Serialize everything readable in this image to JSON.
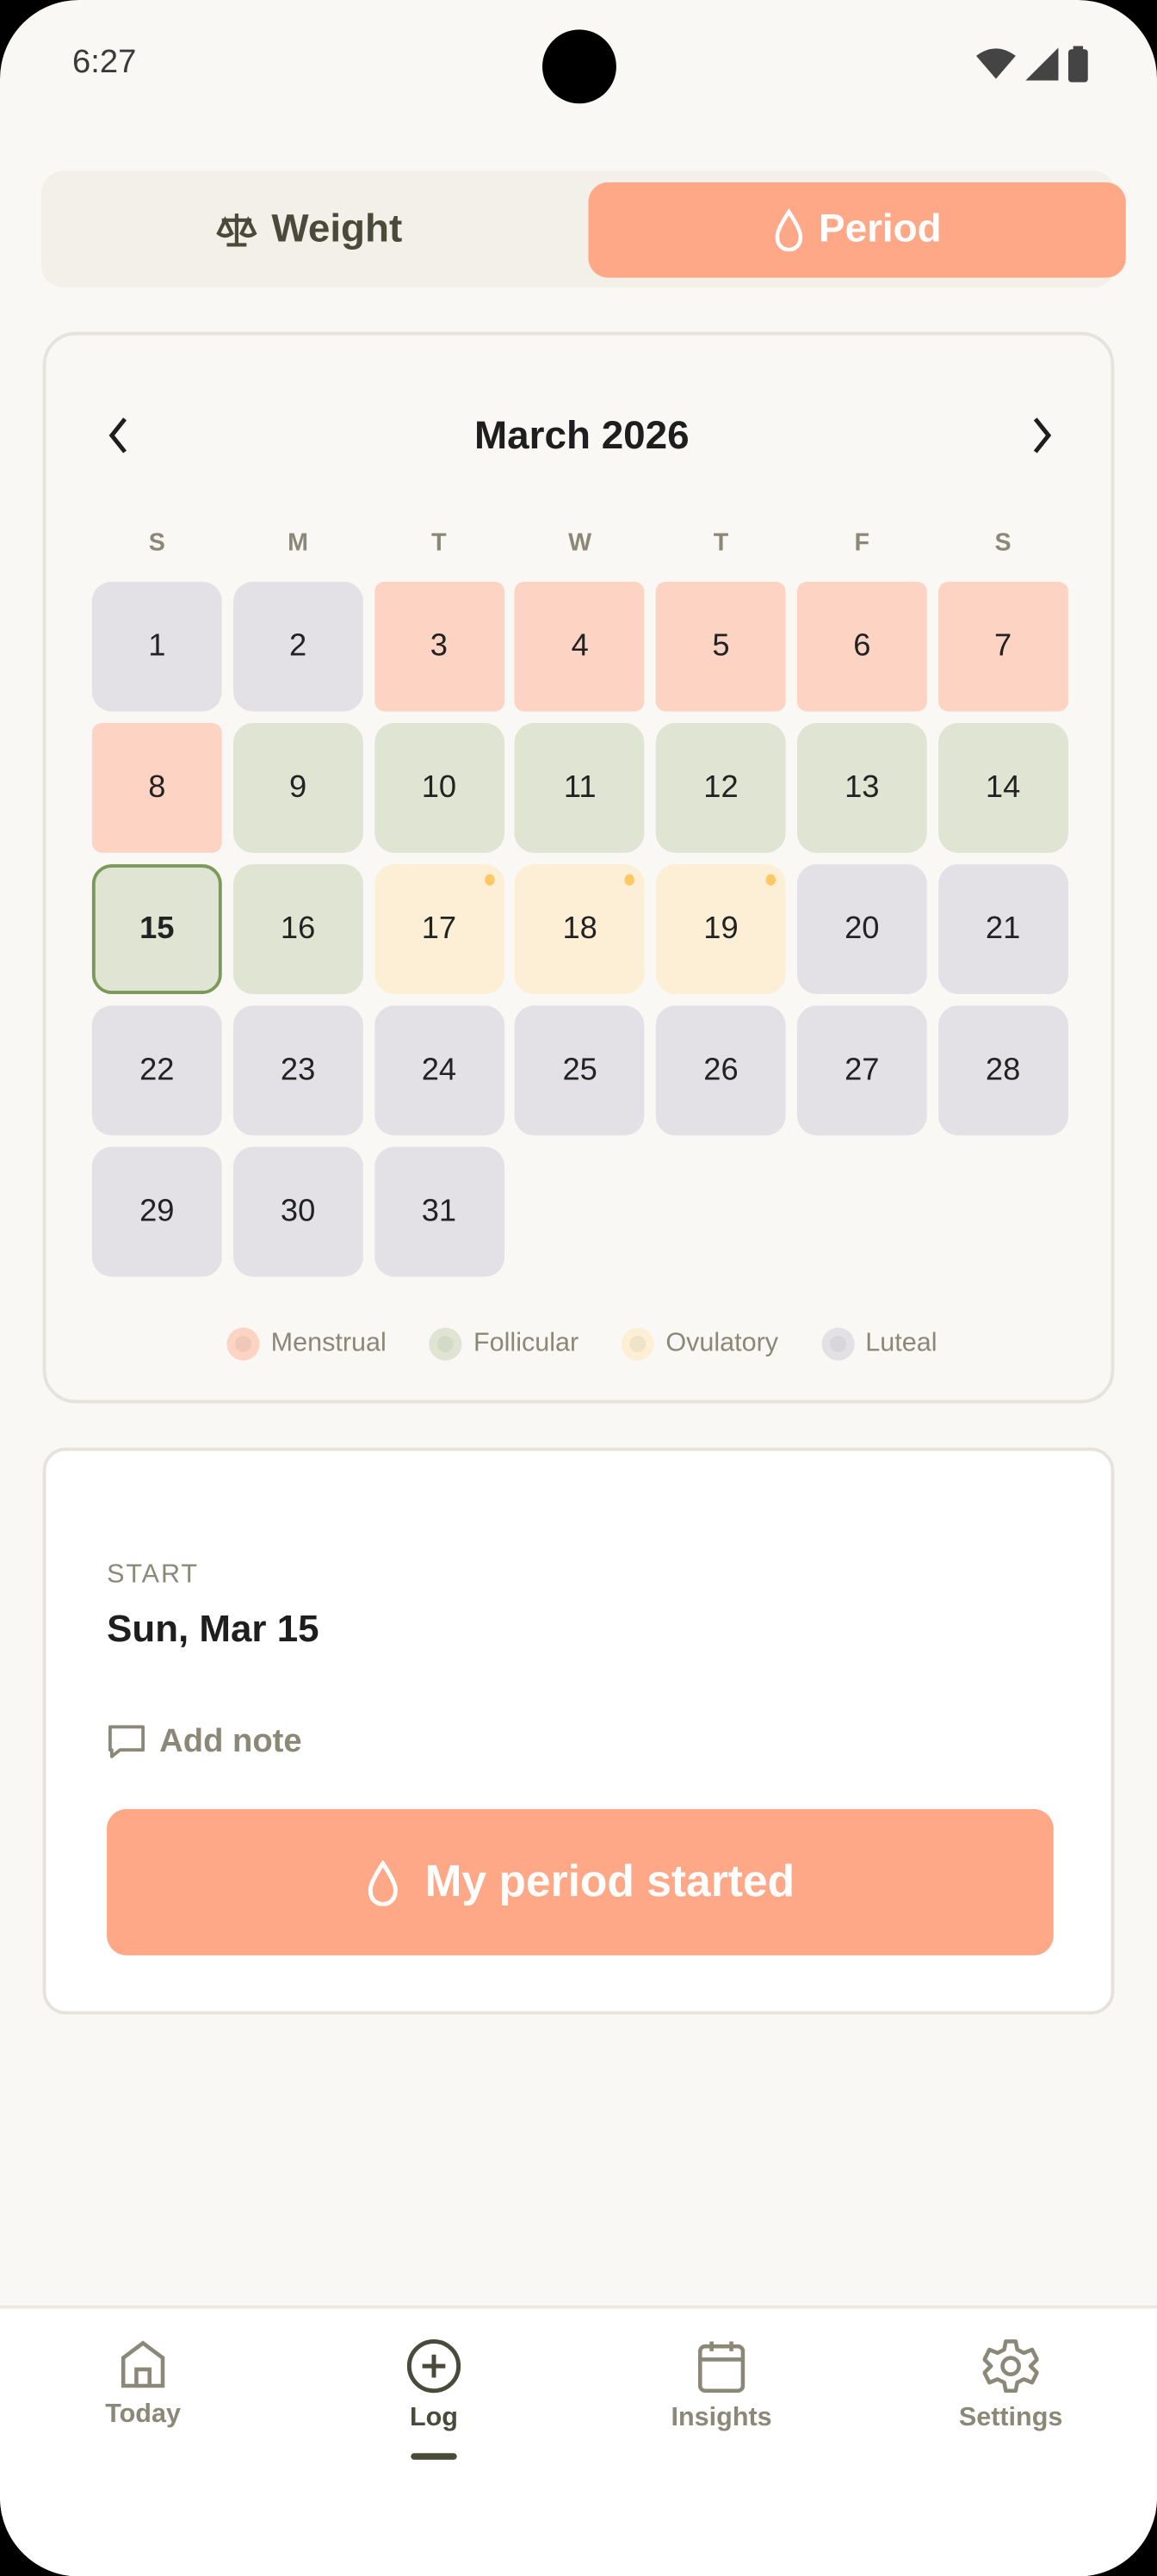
{
  "status_bar": {
    "time": "6:27"
  },
  "segmented": {
    "weight_label": "Weight",
    "period_label": "Period",
    "active": "Period"
  },
  "calendar": {
    "month_label": "March 2026",
    "weekdays": [
      "S",
      "M",
      "T",
      "W",
      "T",
      "F",
      "S"
    ],
    "days": [
      {
        "d": "1",
        "phase": "luteal"
      },
      {
        "d": "2",
        "phase": "luteal"
      },
      {
        "d": "3",
        "phase": "menstrual"
      },
      {
        "d": "4",
        "phase": "menstrual"
      },
      {
        "d": "5",
        "phase": "menstrual"
      },
      {
        "d": "6",
        "phase": "menstrual"
      },
      {
        "d": "7",
        "phase": "menstrual"
      },
      {
        "d": "8",
        "phase": "menstrual"
      },
      {
        "d": "9",
        "phase": "follicular"
      },
      {
        "d": "10",
        "phase": "follicular"
      },
      {
        "d": "11",
        "phase": "follicular"
      },
      {
        "d": "12",
        "phase": "follicular"
      },
      {
        "d": "13",
        "phase": "follicular"
      },
      {
        "d": "14",
        "phase": "follicular"
      },
      {
        "d": "15",
        "phase": "follicular",
        "today": true
      },
      {
        "d": "16",
        "phase": "follicular"
      },
      {
        "d": "17",
        "phase": "ovulatory",
        "dot": true
      },
      {
        "d": "18",
        "phase": "ovulatory",
        "dot": true
      },
      {
        "d": "19",
        "phase": "ovulatory",
        "dot": true
      },
      {
        "d": "20",
        "phase": "luteal"
      },
      {
        "d": "21",
        "phase": "luteal"
      },
      {
        "d": "22",
        "phase": "luteal"
      },
      {
        "d": "23",
        "phase": "luteal"
      },
      {
        "d": "24",
        "phase": "luteal"
      },
      {
        "d": "25",
        "phase": "luteal"
      },
      {
        "d": "26",
        "phase": "luteal"
      },
      {
        "d": "27",
        "phase": "luteal"
      },
      {
        "d": "28",
        "phase": "luteal"
      },
      {
        "d": "29",
        "phase": "luteal"
      },
      {
        "d": "30",
        "phase": "luteal"
      },
      {
        "d": "31",
        "phase": "luteal"
      }
    ],
    "legend": [
      {
        "label": "Menstrual",
        "color": "#fdd3c3"
      },
      {
        "label": "Follicular",
        "color": "#dfe4d3"
      },
      {
        "label": "Ovulatory",
        "color": "#fcefd5"
      },
      {
        "label": "Luteal",
        "color": "#e3e1e6"
      }
    ]
  },
  "detail": {
    "start_label": "START",
    "start_value": "Sun, Mar 15",
    "add_note": "Add note",
    "cta": "My period started"
  },
  "nav": {
    "items": [
      {
        "label": "Today",
        "icon": "home-icon"
      },
      {
        "label": "Log",
        "icon": "plus-circle-icon",
        "active": true
      },
      {
        "label": "Insights",
        "icon": "calendar-icon"
      },
      {
        "label": "Settings",
        "icon": "gear-icon"
      }
    ]
  },
  "colors": {
    "accent": "#ffa887",
    "menstrual": "#fdd3c3",
    "follicular": "#dfe4d3",
    "ovulatory": "#fcefd5",
    "luteal": "#e3e1e6",
    "today_border": "#7b9a5a",
    "ovulation_dot": "#ffc766"
  }
}
